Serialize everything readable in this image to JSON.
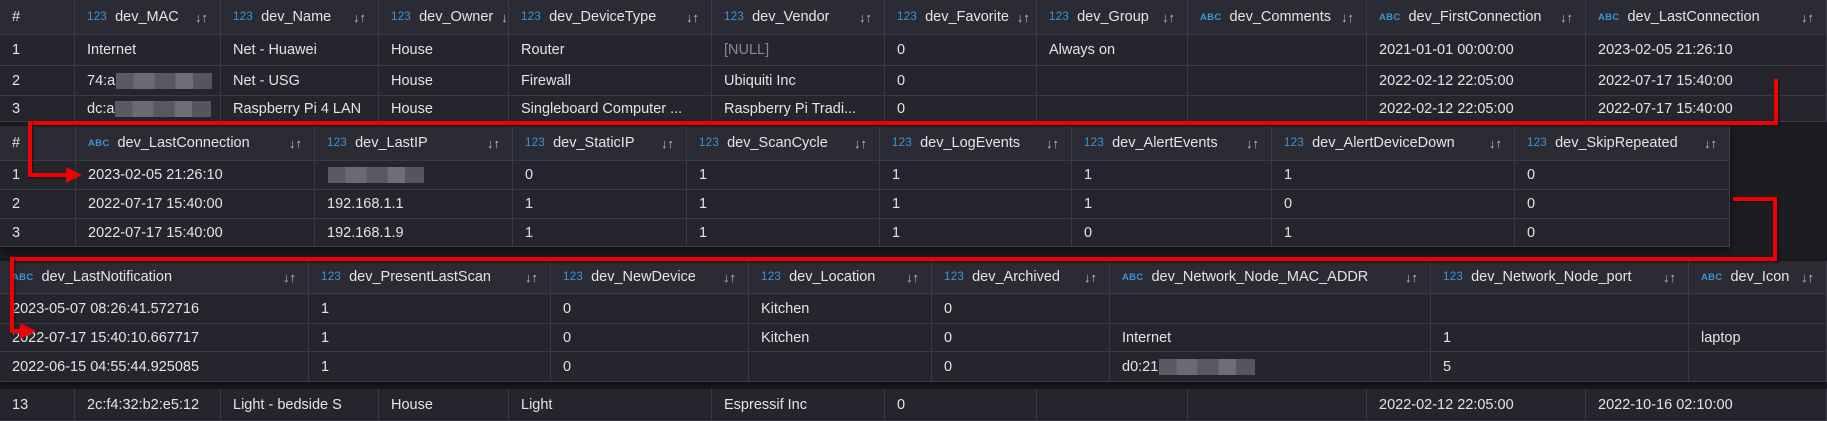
{
  "header_index_label": "#",
  "type_labels": {
    "num": "123",
    "abc": "ABC"
  },
  "sort_glyph": "↓↑",
  "colors": {
    "type_badge": "#3d95d6",
    "annotation": "#f00000",
    "cell_bg": "#25262d",
    "header_bg": "#2a2b33"
  },
  "panels": [
    {
      "id": "devices-table-1",
      "columns": [
        {
          "type": "num",
          "name": "dev_MAC"
        },
        {
          "type": "num",
          "name": "dev_Name"
        },
        {
          "type": "num",
          "name": "dev_Owner"
        },
        {
          "type": "num",
          "name": "dev_DeviceType"
        },
        {
          "type": "num",
          "name": "dev_Vendor"
        },
        {
          "type": "num",
          "name": "dev_Favorite"
        },
        {
          "type": "num",
          "name": "dev_Group"
        },
        {
          "type": "abc",
          "name": "dev_Comments"
        },
        {
          "type": "abc",
          "name": "dev_FirstConnection"
        },
        {
          "type": "abc",
          "name": "dev_LastConnection"
        }
      ],
      "rows": [
        {
          "index": "1",
          "cells": [
            "Internet",
            "Net - Huawei",
            "House",
            "Router",
            "[NULL]",
            "0",
            "Always on",
            "",
            "2021-01-01 00:00:00",
            "2023-02-05 21:26:10"
          ]
        },
        {
          "index": "2",
          "cells": [
            "74:a",
            "Net - USG",
            "House",
            "Firewall",
            "Ubiquiti Inc",
            "0",
            "",
            "",
            "2022-02-12 22:05:00",
            "2022-07-17 15:40:00"
          ],
          "redacted": [
            0
          ]
        },
        {
          "index": "3",
          "cells": [
            "dc:a",
            "Raspberry Pi 4 LAN",
            "House",
            "Singleboard Computer ...",
            "Raspberry Pi Tradi...",
            "0",
            "",
            "",
            "2022-02-12 22:05:00",
            "2022-07-17 15:40:00"
          ],
          "redacted": [
            0
          ]
        }
      ]
    },
    {
      "id": "devices-table-2",
      "columns": [
        {
          "type": "abc",
          "name": "dev_LastConnection"
        },
        {
          "type": "num",
          "name": "dev_LastIP"
        },
        {
          "type": "num",
          "name": "dev_StaticIP"
        },
        {
          "type": "num",
          "name": "dev_ScanCycle"
        },
        {
          "type": "num",
          "name": "dev_LogEvents"
        },
        {
          "type": "num",
          "name": "dev_AlertEvents"
        },
        {
          "type": "num",
          "name": "dev_AlertDeviceDown"
        },
        {
          "type": "num",
          "name": "dev_SkipRepeated"
        }
      ],
      "rows": [
        {
          "index": "1",
          "cells": [
            "2023-02-05 21:26:10",
            "",
            "0",
            "1",
            "1",
            "1",
            "1",
            "0"
          ],
          "redacted": [
            1
          ]
        },
        {
          "index": "2",
          "cells": [
            "2022-07-17 15:40:00",
            "192.168.1.1",
            "1",
            "1",
            "1",
            "1",
            "0",
            "0"
          ]
        },
        {
          "index": "3",
          "cells": [
            "2022-07-17 15:40:00",
            "192.168.1.9",
            "1",
            "1",
            "1",
            "0",
            "1",
            "0"
          ]
        }
      ]
    },
    {
      "id": "devices-table-3",
      "columns": [
        {
          "type": "abc",
          "name": "dev_LastNotification"
        },
        {
          "type": "num",
          "name": "dev_PresentLastScan"
        },
        {
          "type": "num",
          "name": "dev_NewDevice"
        },
        {
          "type": "num",
          "name": "dev_Location"
        },
        {
          "type": "num",
          "name": "dev_Archived"
        },
        {
          "type": "abc",
          "name": "dev_Network_Node_MAC_ADDR"
        },
        {
          "type": "num",
          "name": "dev_Network_Node_port"
        },
        {
          "type": "abc",
          "name": "dev_Icon"
        }
      ],
      "rows": [
        {
          "cells": [
            "2023-05-07 08:26:41.572716",
            "1",
            "0",
            "Kitchen",
            "0",
            "",
            "",
            ""
          ]
        },
        {
          "cells": [
            "2022-07-17 15:40:10.667717",
            "1",
            "0",
            "Kitchen",
            "0",
            "Internet",
            "1",
            "laptop"
          ]
        },
        {
          "cells": [
            "2022-06-15 04:55:44.925085",
            "1",
            "0",
            "",
            "0",
            "d0:21",
            "5",
            ""
          ],
          "redacted": [
            5
          ]
        }
      ]
    }
  ],
  "background_row": {
    "index": "13",
    "cells": [
      "2c:f4:32:b2:e5:12",
      "Light - bedside S",
      "House",
      "Light",
      "Espressif Inc",
      "0",
      "",
      "",
      "2022-02-12 22:05:00",
      "2022-10-16 02:10:00"
    ]
  }
}
